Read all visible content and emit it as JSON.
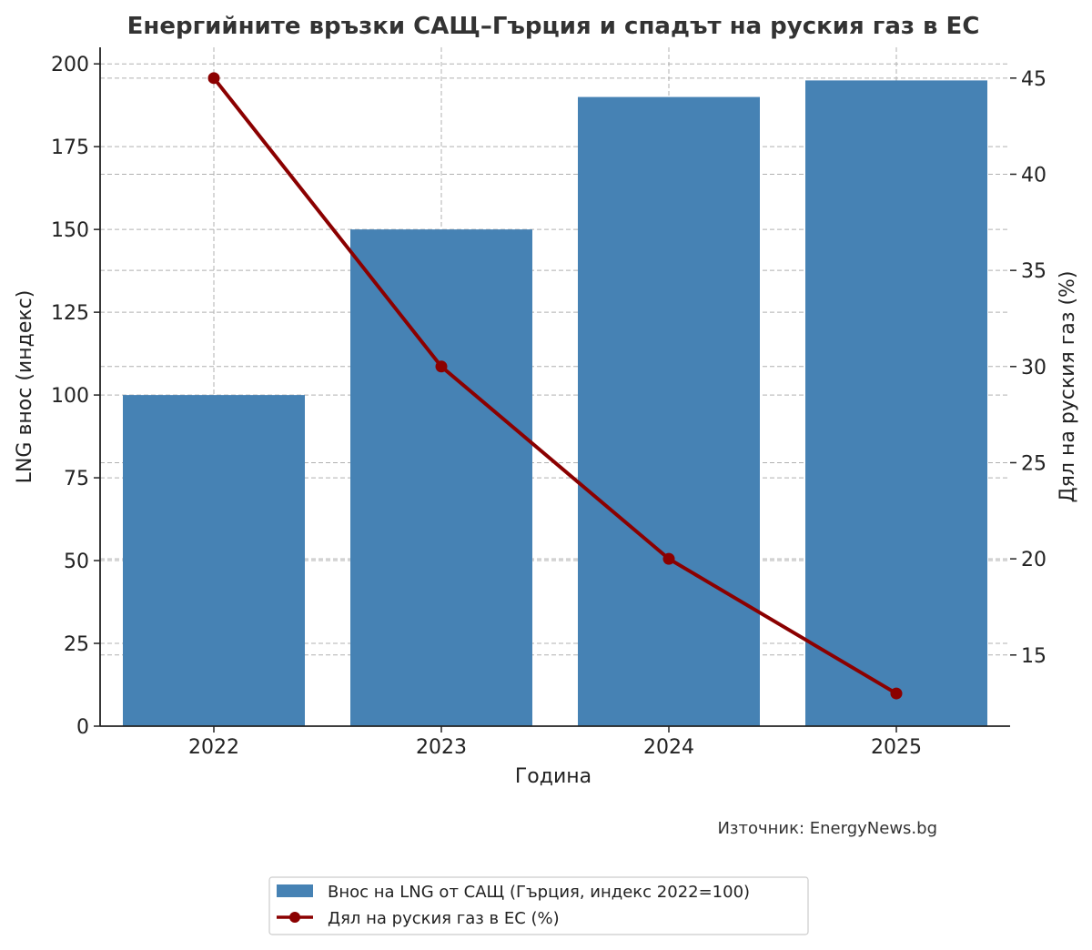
{
  "chart_data": {
    "type": "bar",
    "title": "Енергийните връзки САЩ–Гърция и спадът на руския газ в ЕС",
    "xlabel": "Година",
    "ylabel_left": "LNG внос (индекс)",
    "ylabel_right": "Дял на руския газ (%)",
    "categories": [
      "2022",
      "2023",
      "2024",
      "2025"
    ],
    "series": [
      {
        "name": "Внос на LNG от САЩ (Гърция, индекс 2022=100)",
        "type": "bar",
        "axis": "left",
        "color": "#4682b4",
        "values": [
          100,
          150,
          190,
          195
        ]
      },
      {
        "name": "Дял на руския газ в ЕС (%)",
        "type": "line",
        "axis": "right",
        "color": "#8b0000",
        "values": [
          45,
          30,
          20,
          13
        ]
      }
    ],
    "ylim_left": [
      0,
      205
    ],
    "yticks_left": [
      "0",
      "25",
      "50",
      "75",
      "100",
      "125",
      "150",
      "175",
      "200"
    ],
    "ylim_right": [
      11.3,
      46.6
    ],
    "yticks_right": [
      "15",
      "20",
      "25",
      "30",
      "35",
      "40",
      "45"
    ],
    "grid": true,
    "legend_placement": "bottom-center"
  },
  "source_note": "Източник: EnergyNews.bg"
}
